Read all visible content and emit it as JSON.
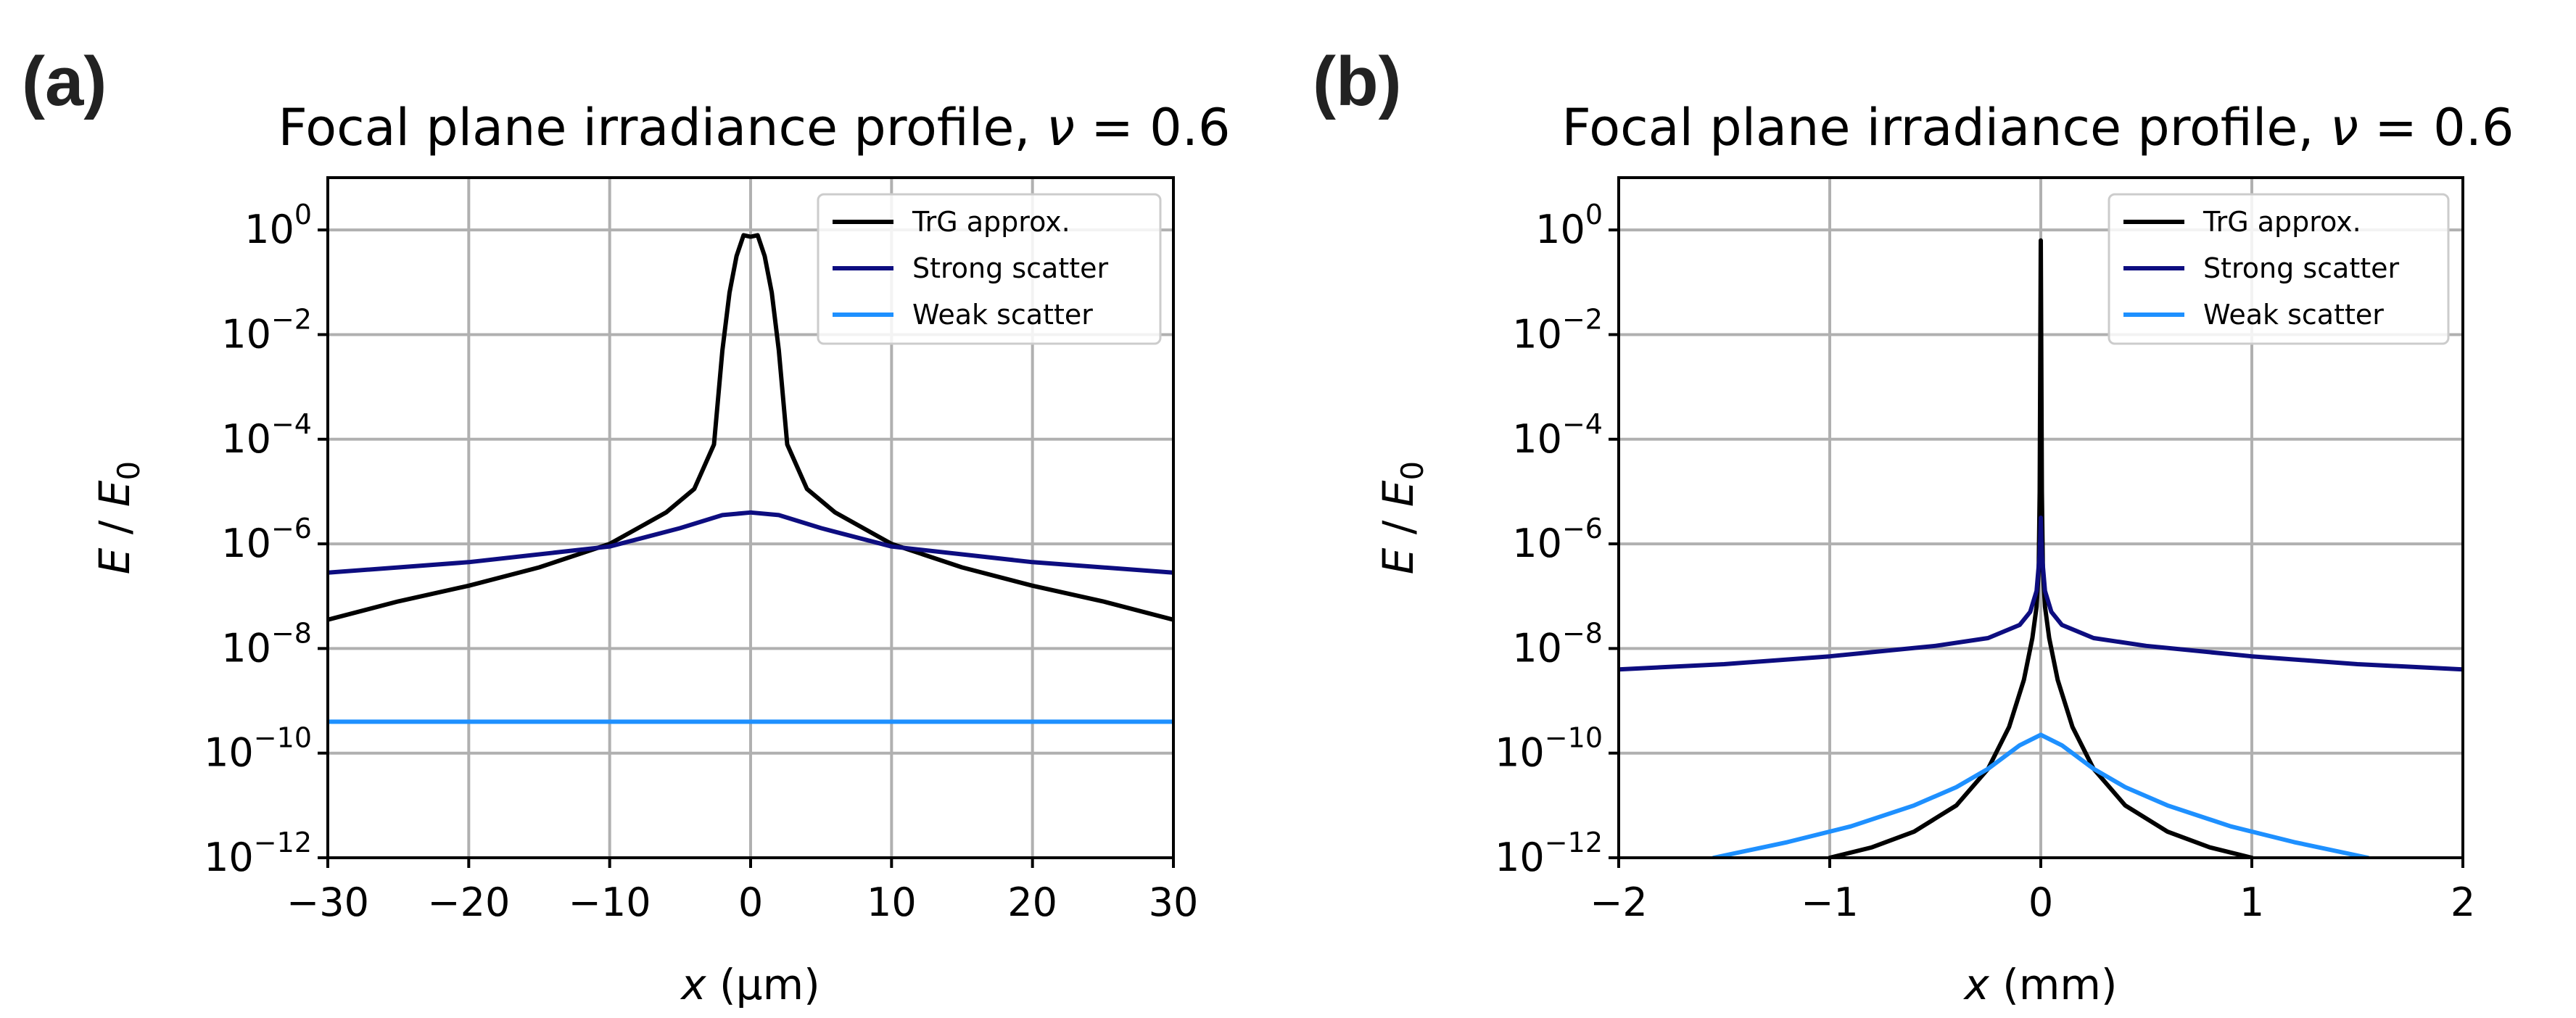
{
  "chart_data": [
    {
      "panel_label": "(a)",
      "type": "line",
      "title": "Focal plane irradiance profile,",
      "title_symbol": "ν",
      "title_value": "= 0.6",
      "xlabel_var": "x",
      "xlabel_unit": "(μm)",
      "ylabel_num": "E",
      "ylabel_sep": " / ",
      "ylabel_den": "E",
      "ylabel_den_sub": "0",
      "xlim": [
        -30,
        30
      ],
      "ylim_log10": [
        -12,
        1
      ],
      "xticks": [
        -30,
        -20,
        -10,
        0,
        10,
        20,
        30
      ],
      "xtick_labels": [
        "−30",
        "−20",
        "−10",
        "0",
        "10",
        "20",
        "30"
      ],
      "yticks_log10": [
        0,
        -2,
        -4,
        -6,
        -8,
        -10,
        -12
      ],
      "ytick_base": "10",
      "ytick_exps": [
        "0",
        "−2",
        "−4",
        "−6",
        "−8",
        "−10",
        "−12"
      ],
      "grid": true,
      "legend_position": "top-right",
      "series": [
        {
          "name": "TrG approx.",
          "color": "#000000",
          "x": [
            -30,
            -25,
            -20,
            -15,
            -10,
            -6,
            -4,
            -2.6,
            -2,
            -1.5,
            -1,
            -0.5,
            0,
            0.5,
            1,
            1.5,
            2,
            2.6,
            4,
            6,
            10,
            15,
            20,
            25,
            30
          ],
          "log10_y": [
            -7.45,
            -7.1,
            -6.8,
            -6.45,
            -6.0,
            -5.4,
            -4.95,
            -4.1,
            -2.3,
            -1.2,
            -0.5,
            -0.1,
            -0.13,
            -0.1,
            -0.5,
            -1.2,
            -2.3,
            -4.1,
            -4.95,
            -5.4,
            -6.0,
            -6.45,
            -6.8,
            -7.1,
            -7.45
          ]
        },
        {
          "name": "Strong scatter",
          "color": "#0d0d80",
          "x": [
            -30,
            -20,
            -10,
            -5,
            -2,
            0,
            2,
            5,
            10,
            20,
            30
          ],
          "log10_y": [
            -6.55,
            -6.35,
            -6.05,
            -5.7,
            -5.45,
            -5.4,
            -5.45,
            -5.7,
            -6.05,
            -6.35,
            -6.55
          ]
        },
        {
          "name": "Weak scatter",
          "color": "#1e90ff",
          "x": [
            -30,
            30
          ],
          "log10_y": [
            -9.4,
            -9.4
          ]
        }
      ]
    },
    {
      "panel_label": "(b)",
      "type": "line",
      "title": "Focal plane irradiance profile,",
      "title_symbol": "ν",
      "title_value": "= 0.6",
      "xlabel_var": "x",
      "xlabel_unit": "(mm)",
      "ylabel_num": "E",
      "ylabel_sep": " / ",
      "ylabel_den": "E",
      "ylabel_den_sub": "0",
      "xlim": [
        -2,
        2
      ],
      "ylim_log10": [
        -12,
        1
      ],
      "xticks": [
        -2,
        -1,
        0,
        1,
        2
      ],
      "xtick_labels": [
        "−2",
        "−1",
        "0",
        "1",
        "2"
      ],
      "yticks_log10": [
        0,
        -2,
        -4,
        -6,
        -8,
        -10,
        -12
      ],
      "ytick_base": "10",
      "ytick_exps": [
        "0",
        "−2",
        "−4",
        "−6",
        "−8",
        "−10",
        "−12"
      ],
      "grid": true,
      "legend_position": "top-right",
      "series": [
        {
          "name": "TrG approx.",
          "color": "#000000",
          "x": [
            -1.0,
            -0.8,
            -0.6,
            -0.4,
            -0.25,
            -0.15,
            -0.08,
            -0.04,
            -0.02,
            -0.01,
            -0.005,
            0,
            0.005,
            0.01,
            0.02,
            0.04,
            0.08,
            0.15,
            0.25,
            0.4,
            0.6,
            0.8,
            1.0
          ],
          "log10_y": [
            -12,
            -11.8,
            -11.5,
            -11.0,
            -10.3,
            -9.5,
            -8.6,
            -7.8,
            -7.2,
            -6.5,
            -5.0,
            -0.2,
            -5.0,
            -6.5,
            -7.2,
            -7.8,
            -8.6,
            -9.5,
            -10.3,
            -11.0,
            -11.5,
            -11.8,
            -12
          ]
        },
        {
          "name": "Strong scatter",
          "color": "#0d0d80",
          "x": [
            -2,
            -1.5,
            -1,
            -0.5,
            -0.25,
            -0.1,
            -0.05,
            -0.02,
            -0.005,
            0,
            0.005,
            0.02,
            0.05,
            0.1,
            0.25,
            0.5,
            1,
            1.5,
            2
          ],
          "log10_y": [
            -8.4,
            -8.3,
            -8.15,
            -7.95,
            -7.8,
            -7.55,
            -7.3,
            -6.9,
            -6.2,
            -5.5,
            -6.2,
            -6.9,
            -7.3,
            -7.55,
            -7.8,
            -7.95,
            -8.15,
            -8.3,
            -8.4
          ]
        },
        {
          "name": "Weak scatter",
          "color": "#1e90ff",
          "x": [
            -1.55,
            -1.2,
            -0.9,
            -0.6,
            -0.4,
            -0.25,
            -0.1,
            0,
            0.1,
            0.25,
            0.4,
            0.6,
            0.9,
            1.2,
            1.55
          ],
          "log10_y": [
            -12,
            -11.7,
            -11.4,
            -11.0,
            -10.65,
            -10.3,
            -9.85,
            -9.65,
            -9.85,
            -10.3,
            -10.65,
            -11.0,
            -11.4,
            -11.7,
            -12
          ]
        }
      ]
    }
  ]
}
